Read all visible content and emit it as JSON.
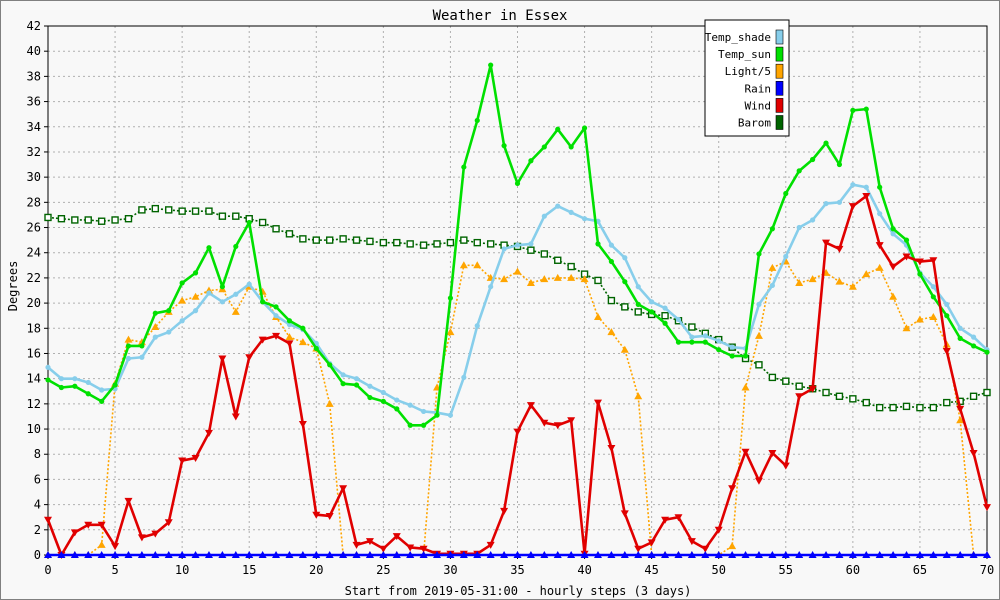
{
  "chart_data": {
    "type": "line",
    "title": "Weather in Essex",
    "xlabel": "Start from 2019-05-31:00 - hourly steps (3 days)",
    "ylabel": "Degrees",
    "xlim": [
      0,
      70
    ],
    "ylim": [
      0,
      42
    ],
    "x_ticks": [
      0,
      5,
      10,
      15,
      20,
      25,
      30,
      35,
      40,
      45,
      50,
      55,
      60,
      65,
      70
    ],
    "y_ticks": [
      0,
      2,
      4,
      6,
      8,
      10,
      12,
      14,
      16,
      18,
      20,
      22,
      24,
      26,
      28,
      30,
      32,
      34,
      36,
      38,
      40,
      42
    ],
    "grid": true,
    "legend_position": "top-right",
    "series": [
      {
        "name": "Temp_shade",
        "color": "#87ceeb",
        "line_style": "solid",
        "marker": "circle",
        "values": [
          14.9,
          14.0,
          14.0,
          13.7,
          13.1,
          13.2,
          15.6,
          15.7,
          17.3,
          17.7,
          18.6,
          19.4,
          20.8,
          20.1,
          20.7,
          21.5,
          20.1,
          19.0,
          18.3,
          17.9,
          16.8,
          15.2,
          14.3,
          14.0,
          13.4,
          12.9,
          12.3,
          11.9,
          11.4,
          11.3,
          11.1,
          14.1,
          18.2,
          21.3,
          24.3,
          24.6,
          24.7,
          26.9,
          27.7,
          27.2,
          26.7,
          26.5,
          24.6,
          23.6,
          21.3,
          20.1,
          19.6,
          18.7,
          17.3,
          17.4,
          17.0,
          16.5,
          16.4,
          19.9,
          21.4,
          23.7,
          26.0,
          26.6,
          27.9,
          28.0,
          29.4,
          29.2,
          27.1,
          25.5,
          24.6,
          22.4,
          21.3,
          19.9,
          18.0,
          17.3,
          16.3
        ]
      },
      {
        "name": "Temp_sun",
        "color": "#00e000",
        "line_style": "solid",
        "marker": "circle",
        "values": [
          13.9,
          13.3,
          13.4,
          12.8,
          12.2,
          13.5,
          16.6,
          16.6,
          19.2,
          19.4,
          21.6,
          22.4,
          24.4,
          21.3,
          24.5,
          26.4,
          20.1,
          19.7,
          18.6,
          18.0,
          16.4,
          15.1,
          13.6,
          13.5,
          12.5,
          12.2,
          11.6,
          10.3,
          10.3,
          11.1,
          20.4,
          30.8,
          34.5,
          38.9,
          32.5,
          29.5,
          31.3,
          32.4,
          33.8,
          32.4,
          33.9,
          24.7,
          23.3,
          21.7,
          19.9,
          19.3,
          18.4,
          16.9,
          16.9,
          16.9,
          16.3,
          15.8,
          15.8,
          23.9,
          25.9,
          28.7,
          30.5,
          31.4,
          32.7,
          31.0,
          35.3,
          35.4,
          29.2,
          25.9,
          25.0,
          22.3,
          20.5,
          19.0,
          17.2,
          16.6,
          16.1
        ]
      },
      {
        "name": "Light/5",
        "color": "#ffa500",
        "line_style": "dotted",
        "marker": "triangle-up",
        "values": [
          0,
          0,
          0,
          0,
          0.8,
          13.6,
          17.1,
          16.9,
          18.1,
          19.3,
          20.2,
          20.5,
          21.0,
          21.1,
          19.3,
          21.3,
          20.9,
          18.9,
          17.3,
          16.9,
          16.4,
          12.0,
          0,
          0,
          0,
          0,
          0,
          0,
          0,
          13.3,
          17.7,
          23.0,
          23.0,
          22.0,
          21.9,
          22.5,
          21.6,
          21.9,
          22.0,
          22.0,
          21.9,
          18.9,
          17.7,
          16.3,
          12.6,
          0,
          0,
          0,
          0,
          0,
          0,
          0.7,
          13.3,
          17.4,
          22.8,
          23.3,
          21.6,
          21.9,
          22.4,
          21.7,
          21.3,
          22.3,
          22.8,
          20.5,
          18.0,
          18.7,
          18.9,
          16.7,
          10.7,
          0,
          0
        ]
      },
      {
        "name": "Rain",
        "color": "#0000ff",
        "line_style": "solid",
        "marker": "triangle-up",
        "values": [
          0,
          0,
          0,
          0,
          0,
          0,
          0,
          0,
          0,
          0,
          0,
          0,
          0,
          0,
          0,
          0,
          0,
          0,
          0,
          0,
          0,
          0,
          0,
          0,
          0,
          0,
          0,
          0,
          0,
          0,
          0,
          0,
          0,
          0,
          0,
          0,
          0,
          0,
          0,
          0,
          0,
          0,
          0,
          0,
          0,
          0,
          0,
          0,
          0,
          0,
          0,
          0,
          0,
          0,
          0,
          0,
          0,
          0,
          0,
          0,
          0,
          0,
          0,
          0,
          0,
          0,
          0,
          0,
          0,
          0,
          0
        ]
      },
      {
        "name": "Wind",
        "color": "#e00000",
        "line_style": "solid",
        "marker": "triangle-down",
        "values": [
          2.8,
          0,
          1.8,
          2.4,
          2.4,
          0.7,
          4.3,
          1.4,
          1.7,
          2.6,
          7.5,
          7.7,
          9.7,
          15.6,
          11.0,
          15.7,
          17.1,
          17.4,
          16.8,
          10.4,
          3.2,
          3.1,
          5.3,
          0.8,
          1.1,
          0.5,
          1.5,
          0.6,
          0.5,
          0.1,
          0.1,
          0.1,
          0.1,
          0.8,
          3.5,
          9.8,
          11.9,
          10.5,
          10.3,
          10.7,
          0.1,
          12.1,
          8.5,
          3.3,
          0.5,
          1.0,
          2.8,
          3.0,
          1.1,
          0.5,
          2.0,
          5.3,
          8.2,
          5.9,
          8.1,
          7.1,
          12.6,
          13.2,
          24.8,
          24.3,
          27.7,
          28.5,
          24.6,
          22.9,
          23.7,
          23.3,
          23.4,
          16.2,
          11.6,
          8.1,
          3.8
        ]
      },
      {
        "name": "Barom",
        "color": "#006400",
        "line_style": "dotted",
        "marker": "square",
        "values": [
          26.8,
          26.7,
          26.6,
          26.6,
          26.5,
          26.6,
          26.7,
          27.4,
          27.5,
          27.4,
          27.3,
          27.3,
          27.3,
          26.9,
          26.9,
          26.7,
          26.4,
          25.9,
          25.5,
          25.1,
          25.0,
          25.0,
          25.1,
          25.0,
          24.9,
          24.8,
          24.8,
          24.7,
          24.6,
          24.7,
          24.8,
          25.0,
          24.8,
          24.7,
          24.6,
          24.5,
          24.2,
          23.9,
          23.4,
          22.9,
          22.3,
          21.8,
          20.2,
          19.7,
          19.3,
          19.1,
          19.0,
          18.6,
          18.1,
          17.6,
          17.1,
          16.5,
          15.6,
          15.1,
          14.1,
          13.8,
          13.4,
          13.2,
          12.9,
          12.6,
          12.4,
          12.1,
          11.7,
          11.7,
          11.8,
          11.7,
          11.7,
          12.1,
          12.2,
          12.6,
          12.9
        ]
      }
    ]
  }
}
